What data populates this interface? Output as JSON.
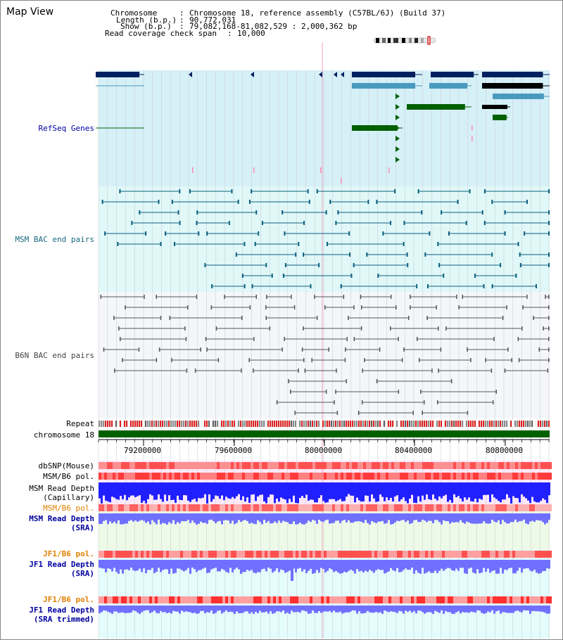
{
  "panel_title": "Map View",
  "header": {
    "chromosome_label": "Chromosome",
    "chromosome_value": "Chromosome 18, reference assembly (C57BL/6J) (Build 37)",
    "length_label": "Length (b.p.)",
    "length_value": "90,772,031",
    "show_label": "Show (b.p.)",
    "show_value": "79,082,168-81,082,529 : 2,000,362 bp",
    "coverage_label": "Read coverage check span",
    "coverage_value": "10,000"
  },
  "tracks": {
    "refseq": "RefSeq Genes",
    "msm_bac": "MSM BAC end pairs",
    "b6n_bac": "B6N BAC end pairs",
    "repeat": "Repeat",
    "chromosome": "chromosome 18",
    "dbsnp": "dbSNP(Mouse)",
    "msm_b6_pol_1": "MSM/B6 pol.",
    "msm_read_depth_cap_1": "MSM Read Depth",
    "msm_read_depth_cap_2": "(Capillary)",
    "msm_b6_pol_2": "MSM/B6 pol.",
    "msm_read_depth_sra_1": "MSM Read Depth",
    "msm_read_depth_sra_2": "(SRA)",
    "jf1_b6_pol_1": "JF1/B6 pol.",
    "jf1_read_depth_sra_1": "JF1 Read Depth",
    "jf1_read_depth_sra_2": "(SRA)",
    "jf1_b6_pol_2": "JF1/B6 pol.",
    "jf1_read_depth_trim_1": "JF1 Read Depth",
    "jf1_read_depth_trim_2": "(SRA trimmed)"
  },
  "axis": {
    "ticks": [
      "79200000",
      "79600000",
      "80000000",
      "80400000",
      "80800000"
    ]
  },
  "colors": {
    "refseq_bg": "#d6f0f8",
    "msm_bg": "#e0f8f8",
    "b6n_bg": "#f4f6fa",
    "dark_gene": "#002060",
    "mid_gene": "#4a9ac0",
    "green_gene": "#006000",
    "msm_line": "#0a6080",
    "b6n_line": "#555555",
    "label_blue": "#0000a0",
    "label_teal": "#1a6a80",
    "label_gray": "#444444",
    "label_orange": "#e08000",
    "chrom_green": "#006000",
    "depth_blue": "#2020ff",
    "depth_violet": "#7070ff",
    "pol_red": "#ff4040"
  }
}
